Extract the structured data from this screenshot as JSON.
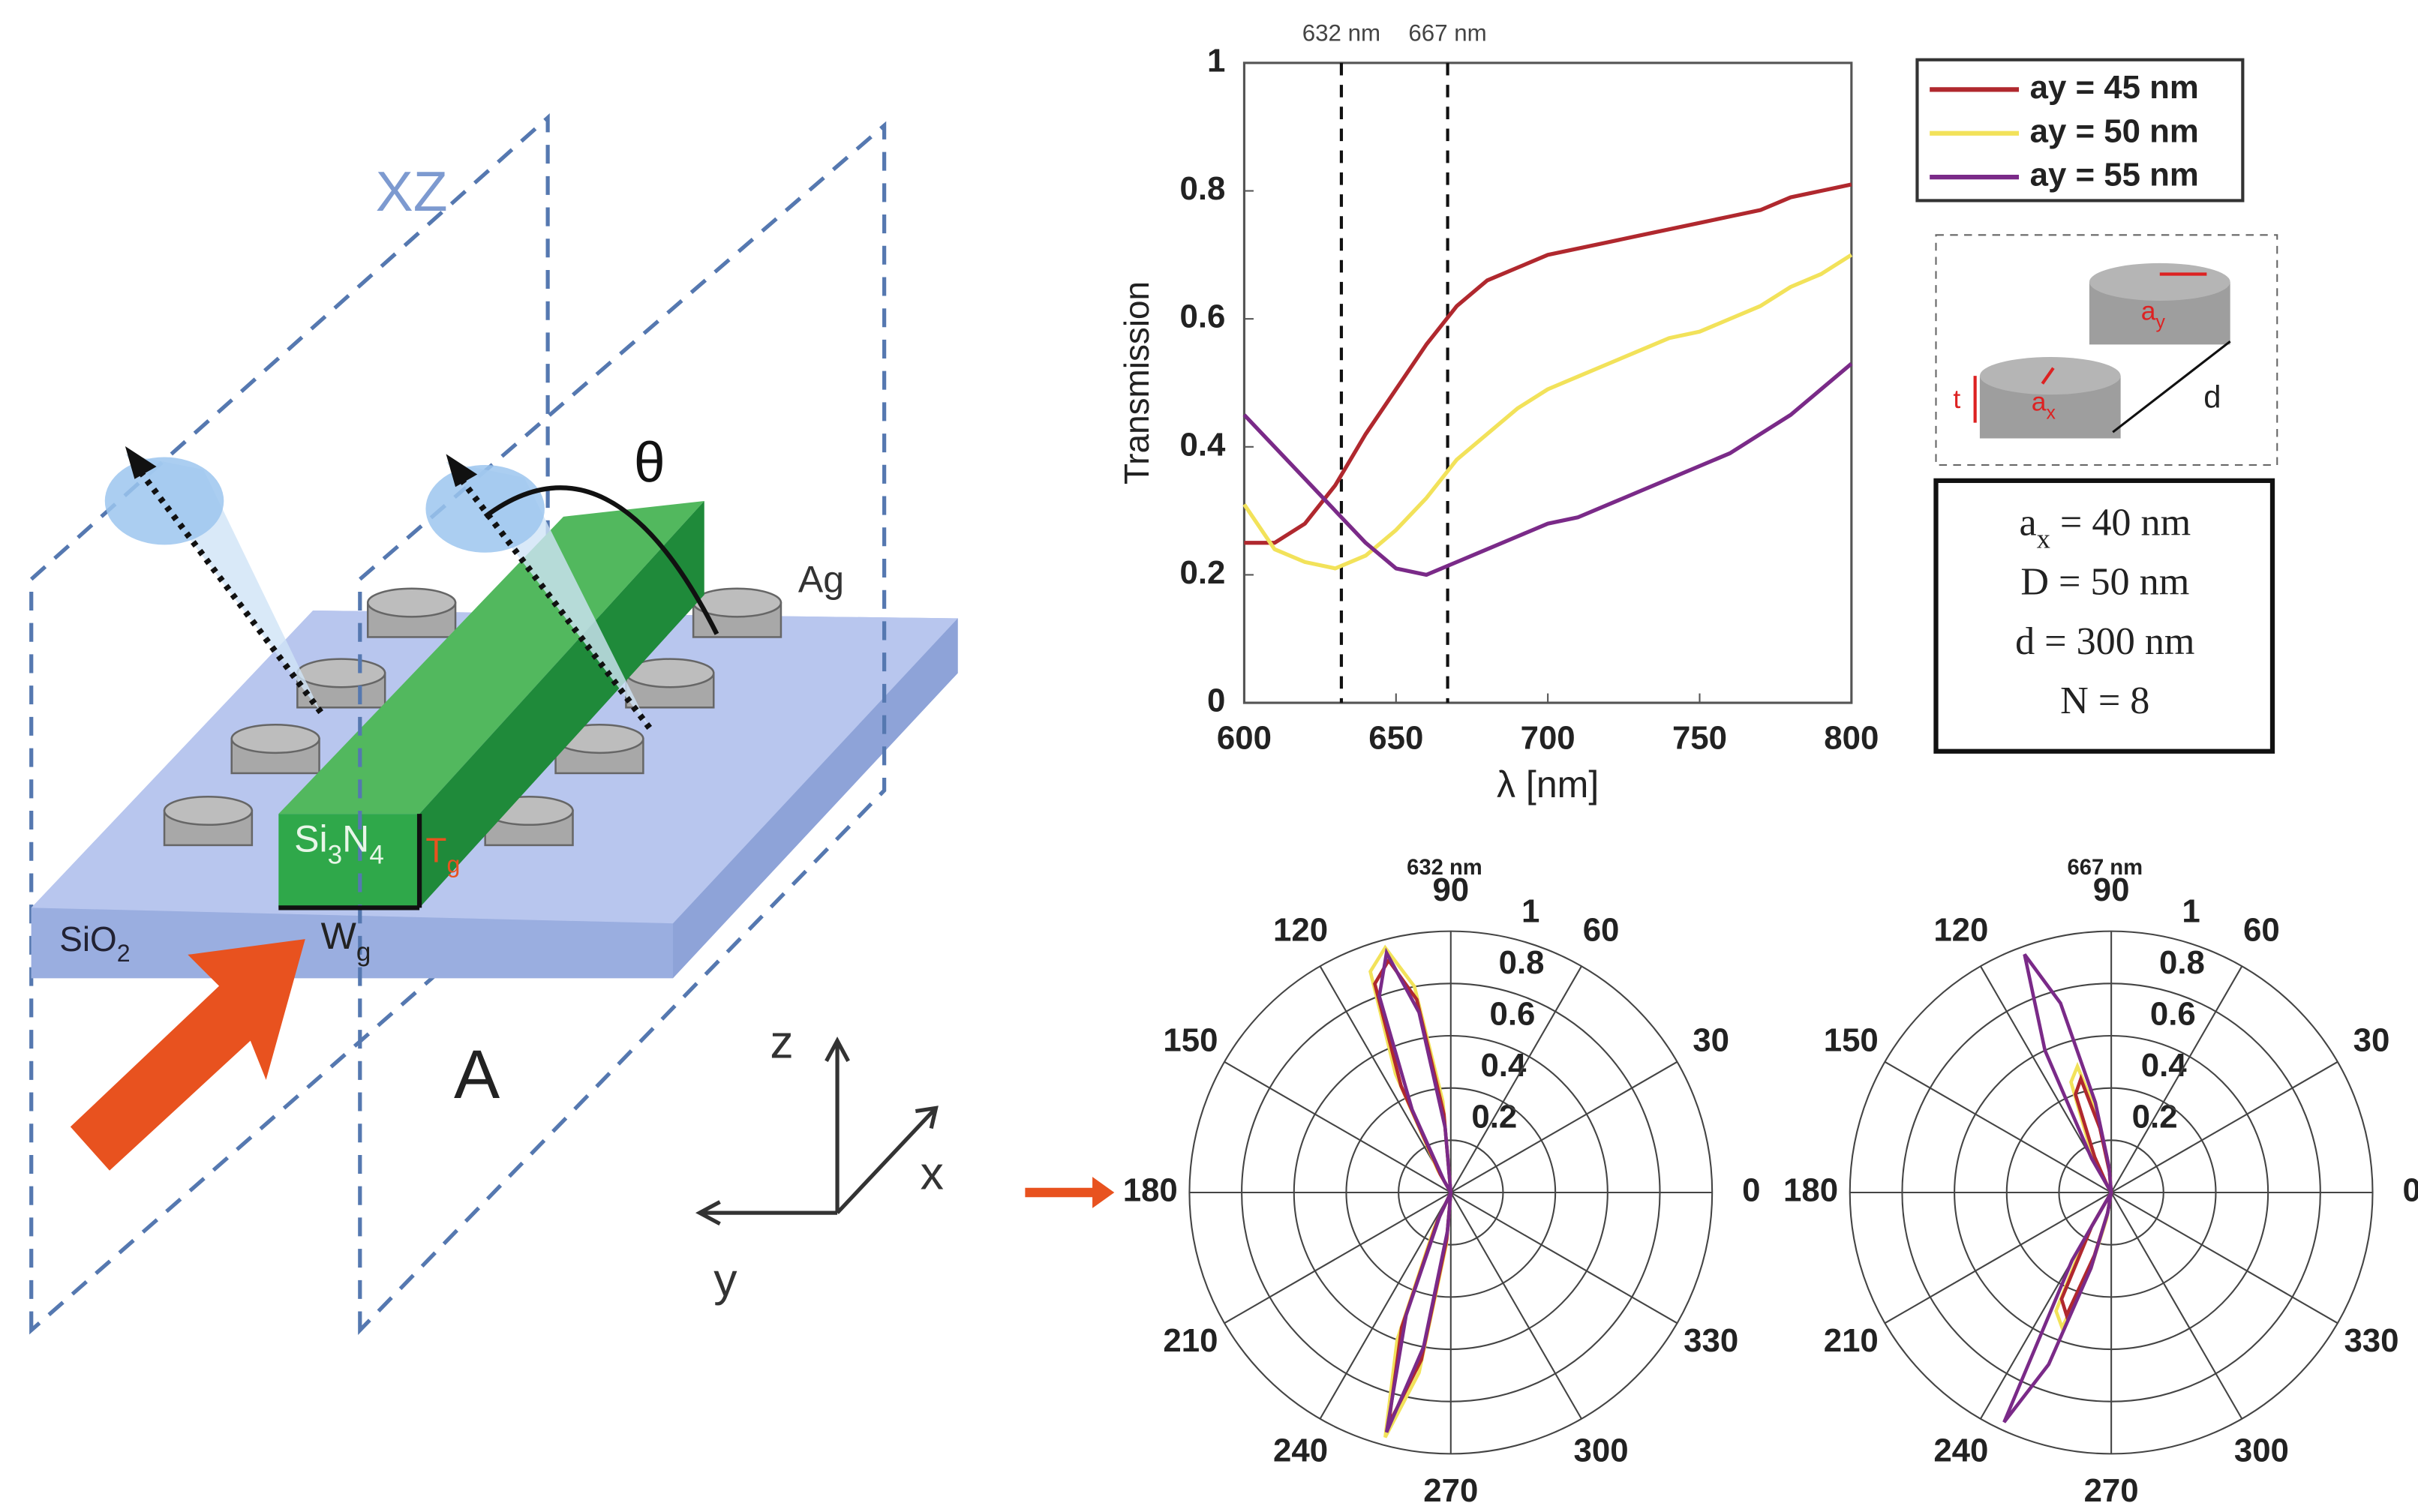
{
  "diagram": {
    "plane_label": "XZ",
    "angle_label": "θ",
    "metal_label": "Ag",
    "waveguide_label": [
      "Si",
      "3",
      "N",
      "4"
    ],
    "height_label": [
      "T",
      "g"
    ],
    "width_label": [
      "W",
      "g"
    ],
    "substrate_label": [
      "SiO",
      "2"
    ],
    "panel_label": "A",
    "axis_z": "z",
    "axis_x": "x",
    "axis_y": "y"
  },
  "inset": {
    "thickness_label": "t",
    "ax_label": [
      "a",
      "x"
    ],
    "ay_label": [
      "a",
      "y"
    ],
    "distance_label": "d",
    "params": [
      [
        "a",
        "x",
        " = 40 nm"
      ],
      [
        "D = 50 nm"
      ],
      [
        "d = 300 nm"
      ],
      [
        "N = 8"
      ]
    ]
  },
  "chart_data": [
    {
      "type": "line",
      "ylabel": "Transmission",
      "xlabel": "λ [nm]",
      "xlim": [
        600,
        800
      ],
      "ylim": [
        0,
        1
      ],
      "xticks": [
        600,
        650,
        700,
        750,
        800
      ],
      "yticks": [
        0,
        0.2,
        0.4,
        0.6,
        0.8,
        1
      ],
      "vlines": [
        {
          "value": 632,
          "label": "632 nm"
        },
        {
          "value": 667,
          "label": "667 nm"
        }
      ],
      "x": [
        600,
        610,
        620,
        630,
        640,
        650,
        660,
        670,
        680,
        690,
        700,
        710,
        720,
        730,
        740,
        750,
        760,
        770,
        780,
        790,
        800
      ],
      "series": [
        {
          "name": "ay = 45 nm",
          "color": "#b0282e",
          "values": [
            0.25,
            0.25,
            0.28,
            0.34,
            0.42,
            0.49,
            0.56,
            0.62,
            0.66,
            0.68,
            0.7,
            0.71,
            0.72,
            0.73,
            0.74,
            0.75,
            0.76,
            0.77,
            0.79,
            0.8,
            0.81
          ]
        },
        {
          "name": "ay = 50 nm",
          "color": "#f2e25a",
          "values": [
            0.31,
            0.24,
            0.22,
            0.21,
            0.23,
            0.27,
            0.32,
            0.38,
            0.42,
            0.46,
            0.49,
            0.51,
            0.53,
            0.55,
            0.57,
            0.58,
            0.6,
            0.62,
            0.65,
            0.67,
            0.7
          ]
        },
        {
          "name": "ay = 55 nm",
          "color": "#7a2a88",
          "values": [
            0.45,
            0.4,
            0.35,
            0.3,
            0.25,
            0.21,
            0.2,
            0.22,
            0.24,
            0.26,
            0.28,
            0.29,
            0.31,
            0.33,
            0.35,
            0.37,
            0.39,
            0.42,
            0.45,
            0.49,
            0.53
          ]
        }
      ]
    },
    {
      "type": "polar",
      "title": "632 nm",
      "rlim": [
        0,
        1
      ],
      "rticks": [
        0.2,
        0.4,
        0.6,
        0.8,
        1
      ],
      "thetaticks": [
        0,
        30,
        60,
        90,
        120,
        150,
        180,
        210,
        240,
        270,
        300,
        330
      ],
      "theta": [
        90,
        95,
        100,
        105,
        110,
        115,
        120,
        125,
        240,
        245,
        250,
        255,
        260,
        265,
        270
      ],
      "series": [
        {
          "name": "ay = 50 nm",
          "color": "#f2e25a",
          "values": [
            0,
            0.35,
            0.8,
            0.97,
            0.9,
            0.5,
            0.1,
            0,
            0,
            0.15,
            0.6,
            0.97,
            0.7,
            0.2,
            0
          ]
        },
        {
          "name": "ay = 45 nm",
          "color": "#b0282e",
          "values": [
            0,
            0.3,
            0.75,
            0.92,
            0.85,
            0.45,
            0.08,
            0,
            0,
            0.12,
            0.55,
            0.92,
            0.65,
            0.18,
            0
          ]
        },
        {
          "name": "ay = 55 nm",
          "color": "#7a2a88",
          "values": [
            0,
            0.25,
            0.7,
            0.95,
            0.8,
            0.35,
            0.05,
            0,
            0,
            0.1,
            0.5,
            0.95,
            0.6,
            0.15,
            0
          ]
        }
      ]
    },
    {
      "type": "polar",
      "title": "667 nm",
      "rlim": [
        0,
        1
      ],
      "rticks": [
        0.2,
        0.4,
        0.6,
        0.8,
        1
      ],
      "thetaticks": [
        0,
        30,
        60,
        90,
        120,
        150,
        180,
        210,
        240,
        270,
        300,
        330
      ],
      "theta": [
        90,
        95,
        100,
        105,
        110,
        115,
        120,
        125,
        235,
        240,
        245,
        250,
        255,
        260,
        270
      ],
      "series": [
        {
          "name": "ay = 50 nm",
          "color": "#f2e25a",
          "values": [
            0,
            0.1,
            0.3,
            0.5,
            0.45,
            0.2,
            0.05,
            0,
            0,
            0.2,
            0.5,
            0.55,
            0.3,
            0.1,
            0
          ]
        },
        {
          "name": "ay = 45 nm",
          "color": "#b0282e",
          "values": [
            0,
            0.08,
            0.25,
            0.45,
            0.4,
            0.15,
            0.03,
            0,
            0,
            0.15,
            0.45,
            0.5,
            0.25,
            0.08,
            0
          ]
        },
        {
          "name": "ay = 55 nm",
          "color": "#7a2a88",
          "values": [
            0,
            0.1,
            0.35,
            0.75,
            0.97,
            0.6,
            0.15,
            0,
            0,
            0.3,
            0.97,
            0.7,
            0.3,
            0.08,
            0
          ]
        }
      ]
    }
  ]
}
